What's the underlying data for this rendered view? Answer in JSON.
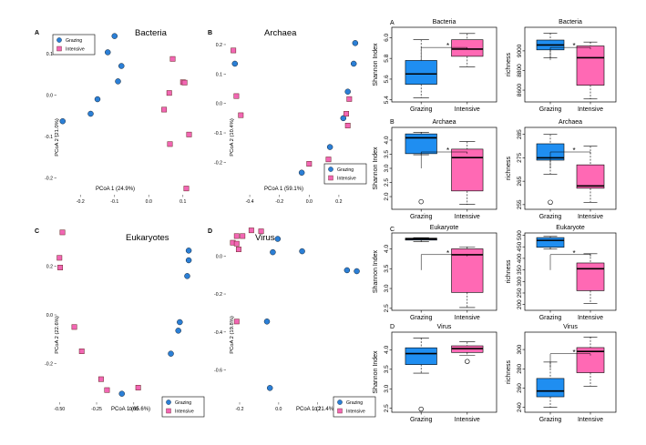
{
  "colors": {
    "grazing": "#2b7fd6",
    "intensive": "#f266b4",
    "grazing_box": "#1f8ef1",
    "intensive_box": "#ff69b4"
  },
  "chart_data": [
    {
      "id": "pcoa-bacteria",
      "type": "scatter",
      "panel_letter": "A",
      "title": "Bacteria",
      "xlabel": "PCoA 1 (24.9%)",
      "ylabel": "PCoA 2 (21.0%)",
      "xlim": [
        -0.27,
        0.13
      ],
      "ylim": [
        -0.24,
        0.15
      ],
      "xticks": [
        -0.2,
        -0.1,
        0.0,
        0.1
      ],
      "xtick_labels": [
        "-0.2",
        "-0.1",
        "0.0",
        "0.1"
      ],
      "yticks": [
        0.1,
        0.0,
        -0.1,
        -0.2
      ],
      "ytick_labels": [
        "0.1",
        "0.0",
        "-0.1",
        "-0.2"
      ],
      "legend": {
        "position": "top-left",
        "entries": [
          "Grazing",
          "Intensive"
        ]
      },
      "series": [
        {
          "name": "Grazing",
          "x": [
            -0.252,
            -0.17,
            -0.15,
            -0.12,
            -0.1,
            -0.09,
            -0.08
          ],
          "y": [
            -0.063,
            -0.045,
            -0.01,
            0.103,
            0.142,
            0.033,
            0.07
          ]
        },
        {
          "name": "Intensive",
          "x": [
            0.045,
            0.06,
            0.062,
            0.07,
            0.1,
            0.11,
            0.118,
            0.105
          ],
          "y": [
            -0.035,
            0.005,
            -0.118,
            0.087,
            0.031,
            -0.225,
            -0.095,
            0.03
          ]
        }
      ]
    },
    {
      "id": "pcoa-archaea",
      "type": "scatter",
      "panel_letter": "B",
      "title": "Archaea",
      "xlabel": "PCoA 1 (59.1%)",
      "ylabel": "PCoA 2 (10.4%)",
      "xlim": [
        -0.56,
        0.36
      ],
      "ylim": [
        -0.31,
        0.24
      ],
      "xticks": [
        -0.4,
        -0.2,
        0.0,
        0.2
      ],
      "xtick_labels": [
        "-0.4",
        "-0.2",
        "0.0",
        "0.2"
      ],
      "yticks": [
        0.2,
        0.1,
        0.0,
        -0.1,
        -0.2
      ],
      "ytick_labels": [
        "0.2",
        "0.1",
        "0.0",
        "-0.1",
        "-0.2"
      ],
      "legend": {
        "position": "right",
        "entries": [
          "Grazing",
          "Intensive"
        ]
      },
      "series": [
        {
          "name": "Grazing",
          "x": [
            -0.5,
            -0.05,
            0.14,
            0.23,
            0.26,
            0.3,
            0.31
          ],
          "y": [
            0.135,
            -0.235,
            -0.148,
            -0.05,
            0.04,
            0.135,
            0.205
          ]
        },
        {
          "name": "Intensive",
          "x": [
            -0.51,
            -0.49,
            -0.46,
            0.0,
            0.13,
            0.25,
            0.27,
            0.26
          ],
          "y": [
            0.18,
            0.025,
            -0.04,
            -0.205,
            -0.19,
            -0.035,
            0.015,
            -0.075
          ]
        }
      ]
    },
    {
      "id": "pcoa-eukaryotes",
      "type": "scatter",
      "panel_letter": "C",
      "title": "Eukaryotes",
      "xlabel": "PCoA 1 (65.6%)",
      "ylabel": "PCoA 2 (22.6%)",
      "xlim": [
        -0.52,
        0.4
      ],
      "ylim": [
        -0.36,
        0.36
      ],
      "xticks": [
        -0.5,
        -0.25,
        0.0,
        0.25
      ],
      "xtick_labels": [
        "-0.50",
        "-0.25",
        "0.00",
        "0.25"
      ],
      "yticks": [
        0.2,
        0.0,
        -0.2
      ],
      "ytick_labels": [
        "0.2",
        "0.0",
        "-0.2"
      ],
      "legend": {
        "position": "bottom-right",
        "entries": [
          "Grazing",
          "Intensive"
        ]
      },
      "series": [
        {
          "name": "Grazing",
          "x": [
            -0.08,
            0.25,
            0.3,
            0.31,
            0.36,
            0.37,
            0.37
          ],
          "y": [
            -0.325,
            -0.16,
            -0.065,
            -0.03,
            0.16,
            0.225,
            0.265
          ]
        },
        {
          "name": "Intensive",
          "x": [
            -0.48,
            -0.5,
            -0.495,
            -0.4,
            -0.35,
            -0.22,
            -0.18,
            0.03
          ],
          "y": [
            0.34,
            0.235,
            0.195,
            -0.05,
            -0.15,
            -0.265,
            -0.31,
            -0.3
          ]
        }
      ]
    },
    {
      "id": "pcoa-virus",
      "type": "scatter",
      "panel_letter": "D",
      "title": "Virus",
      "xlabel": "PCoA 1 (21.4%)",
      "ylabel": "PCoA 2 (19.8%)",
      "xlim": [
        -0.27,
        0.43
      ],
      "ylim": [
        -0.77,
        0.15
      ],
      "xticks": [
        -0.2,
        0.0,
        0.2,
        0.4
      ],
      "xtick_labels": [
        "-0.2",
        "0.0",
        "0.2",
        "0.4"
      ],
      "yticks": [
        0.0,
        -0.2,
        -0.4,
        -0.6
      ],
      "ytick_labels": [
        "0.0",
        "-0.2",
        "-0.4",
        "-0.6"
      ],
      "legend": {
        "position": "bottom-right",
        "entries": [
          "Grazing",
          "Intensive"
        ]
      },
      "series": [
        {
          "name": "Grazing",
          "x": [
            -0.06,
            -0.045,
            -0.03,
            -0.005,
            0.12,
            0.35,
            0.4
          ],
          "y": [
            -0.345,
            -0.695,
            0.02,
            0.09,
            0.025,
            -0.075,
            -0.08
          ]
        },
        {
          "name": "Intensive",
          "x": [
            -0.235,
            -0.215,
            -0.215,
            -0.205,
            -0.185,
            -0.14,
            -0.09,
            -0.215
          ],
          "y": [
            0.07,
            0.105,
            0.065,
            0.035,
            0.105,
            0.135,
            0.13,
            -0.345
          ]
        }
      ]
    },
    {
      "id": "box-bacteria-shannon",
      "type": "box",
      "panel_letter": "A",
      "title": "Bacteria",
      "ylabel": "Shannon Index",
      "ylim": [
        5.38,
        6.1
      ],
      "yticks": [
        5.4,
        5.6,
        5.8,
        6.0
      ],
      "ytick_labels": [
        "5.4",
        "5.6",
        "5.8",
        "6.0"
      ],
      "categories": [
        "Grazing",
        "Intensive"
      ],
      "significance": "*",
      "boxes": [
        {
          "name": "Grazing",
          "min": 5.42,
          "q1": 5.55,
          "median": 5.65,
          "q3": 5.78,
          "max": 5.98,
          "outliers": []
        },
        {
          "name": "Intensive",
          "min": 5.72,
          "q1": 5.82,
          "median": 5.89,
          "q3": 5.98,
          "max": 6.04,
          "outliers": []
        }
      ]
    },
    {
      "id": "box-bacteria-richness",
      "type": "box",
      "panel_letter": "",
      "title": "Bacteria",
      "ylabel": "richness",
      "ylim": [
        8480,
        9240
      ],
      "yticks": [
        8600,
        8800,
        9000
      ],
      "ytick_labels": [
        "8600",
        "8800",
        "9000"
      ],
      "categories": [
        "Grazing",
        "Intensive"
      ],
      "significance": "*",
      "boxes": [
        {
          "name": "Grazing",
          "min": 8930,
          "q1": 9010,
          "median": 9060,
          "q3": 9110,
          "max": 9180,
          "outliers": []
        },
        {
          "name": "Intensive",
          "min": 8510,
          "q1": 8650,
          "median": 8930,
          "q3": 9050,
          "max": 9090,
          "outliers": []
        }
      ]
    },
    {
      "id": "box-archaea-shannon",
      "type": "box",
      "panel_letter": "B",
      "title": "Archaea",
      "ylabel": "Shannon Index",
      "ylim": [
        1.55,
        4.45
      ],
      "yticks": [
        2.0,
        2.5,
        3.0,
        3.5,
        4.0
      ],
      "ytick_labels": [
        "2.0",
        "2.5",
        "3.0",
        "3.5",
        "4.0"
      ],
      "categories": [
        "Grazing",
        "Intensive"
      ],
      "significance": "*",
      "boxes": [
        {
          "name": "Grazing",
          "min": 3.48,
          "q1": 3.52,
          "median": 4.08,
          "q3": 4.22,
          "max": 4.28,
          "outliers": [
            1.82
          ]
        },
        {
          "name": "Intensive",
          "min": 1.72,
          "q1": 2.2,
          "median": 3.38,
          "q3": 3.68,
          "max": 3.95,
          "outliers": []
        }
      ]
    },
    {
      "id": "box-archaea-richness",
      "type": "box",
      "panel_letter": "",
      "title": "Archaea",
      "ylabel": "richness",
      "ylim": [
        253,
        288
      ],
      "yticks": [
        255,
        265,
        275,
        285
      ],
      "ytick_labels": [
        "255",
        "265",
        "275",
        "285"
      ],
      "categories": [
        "Grazing",
        "Intensive"
      ],
      "significance": "*",
      "boxes": [
        {
          "name": "Grazing",
          "min": 268,
          "q1": 274,
          "median": 275,
          "q3": 281,
          "max": 285,
          "outliers": [
            256
          ]
        },
        {
          "name": "Intensive",
          "min": 256,
          "q1": 262,
          "median": 263,
          "q3": 272,
          "max": 280,
          "outliers": []
        }
      ]
    },
    {
      "id": "box-eukaryote-shannon",
      "type": "box",
      "panel_letter": "C",
      "title": "Eukaryote",
      "ylabel": "Shannon Index",
      "ylim": [
        2.45,
        4.4
      ],
      "yticks": [
        2.5,
        3.0,
        3.5,
        4.0
      ],
      "ytick_labels": [
        "2.5",
        "3.0",
        "3.5",
        "4.0"
      ],
      "categories": [
        "Grazing",
        "Intensive"
      ],
      "significance": "*",
      "boxes": [
        {
          "name": "Grazing",
          "min": 4.18,
          "q1": 4.22,
          "median": 4.25,
          "q3": 4.27,
          "max": 4.28,
          "outliers": []
        },
        {
          "name": "Intensive",
          "min": 2.52,
          "q1": 2.9,
          "median": 3.85,
          "q3": 4.0,
          "max": 4.05,
          "outliers": []
        }
      ]
    },
    {
      "id": "box-eukaryote-richness",
      "type": "box",
      "panel_letter": "",
      "title": "Eukaryote",
      "ylabel": "richness",
      "ylim": [
        175,
        510
      ],
      "yticks": [
        200,
        250,
        300,
        350,
        400,
        450,
        500
      ],
      "ytick_labels": [
        "200",
        "250",
        "300",
        "350",
        "400",
        "450",
        "500"
      ],
      "categories": [
        "Grazing",
        "Intensive"
      ],
      "significance": "*",
      "boxes": [
        {
          "name": "Grazing",
          "min": 440,
          "q1": 448,
          "median": 478,
          "q3": 490,
          "max": 495,
          "outliers": []
        },
        {
          "name": "Intensive",
          "min": 205,
          "q1": 260,
          "median": 355,
          "q3": 380,
          "max": 420,
          "outliers": []
        }
      ]
    },
    {
      "id": "box-virus-shannon",
      "type": "box",
      "panel_letter": "D",
      "title": "Virus",
      "ylabel": "Shannon Index",
      "ylim": [
        2.4,
        4.45
      ],
      "yticks": [
        2.5,
        3.0,
        3.5,
        4.0
      ],
      "ytick_labels": [
        "2.5",
        "3.0",
        "3.5",
        "4.0"
      ],
      "categories": [
        "Grazing",
        "Intensive"
      ],
      "significance": "",
      "boxes": [
        {
          "name": "Grazing",
          "min": 3.4,
          "q1": 3.62,
          "median": 3.9,
          "q3": 4.05,
          "max": 4.3,
          "outliers": [
            2.48
          ]
        },
        {
          "name": "Intensive",
          "min": 3.85,
          "q1": 3.93,
          "median": 4.03,
          "q3": 4.1,
          "max": 4.2,
          "outliers": [
            3.7
          ]
        }
      ]
    },
    {
      "id": "box-virus-richness",
      "type": "box",
      "panel_letter": "",
      "title": "Virus",
      "ylabel": "richness",
      "ylim": [
        235,
        318
      ],
      "yticks": [
        240,
        260,
        280,
        300
      ],
      "ytick_labels": [
        "240",
        "260",
        "280",
        "300"
      ],
      "categories": [
        "Grazing",
        "Intensive"
      ],
      "significance": "*",
      "boxes": [
        {
          "name": "Grazing",
          "min": 240,
          "q1": 251,
          "median": 257,
          "q3": 270,
          "max": 287,
          "outliers": []
        },
        {
          "name": "Intensive",
          "min": 262,
          "q1": 276,
          "median": 298,
          "q3": 302,
          "max": 313,
          "outliers": []
        }
      ]
    }
  ]
}
